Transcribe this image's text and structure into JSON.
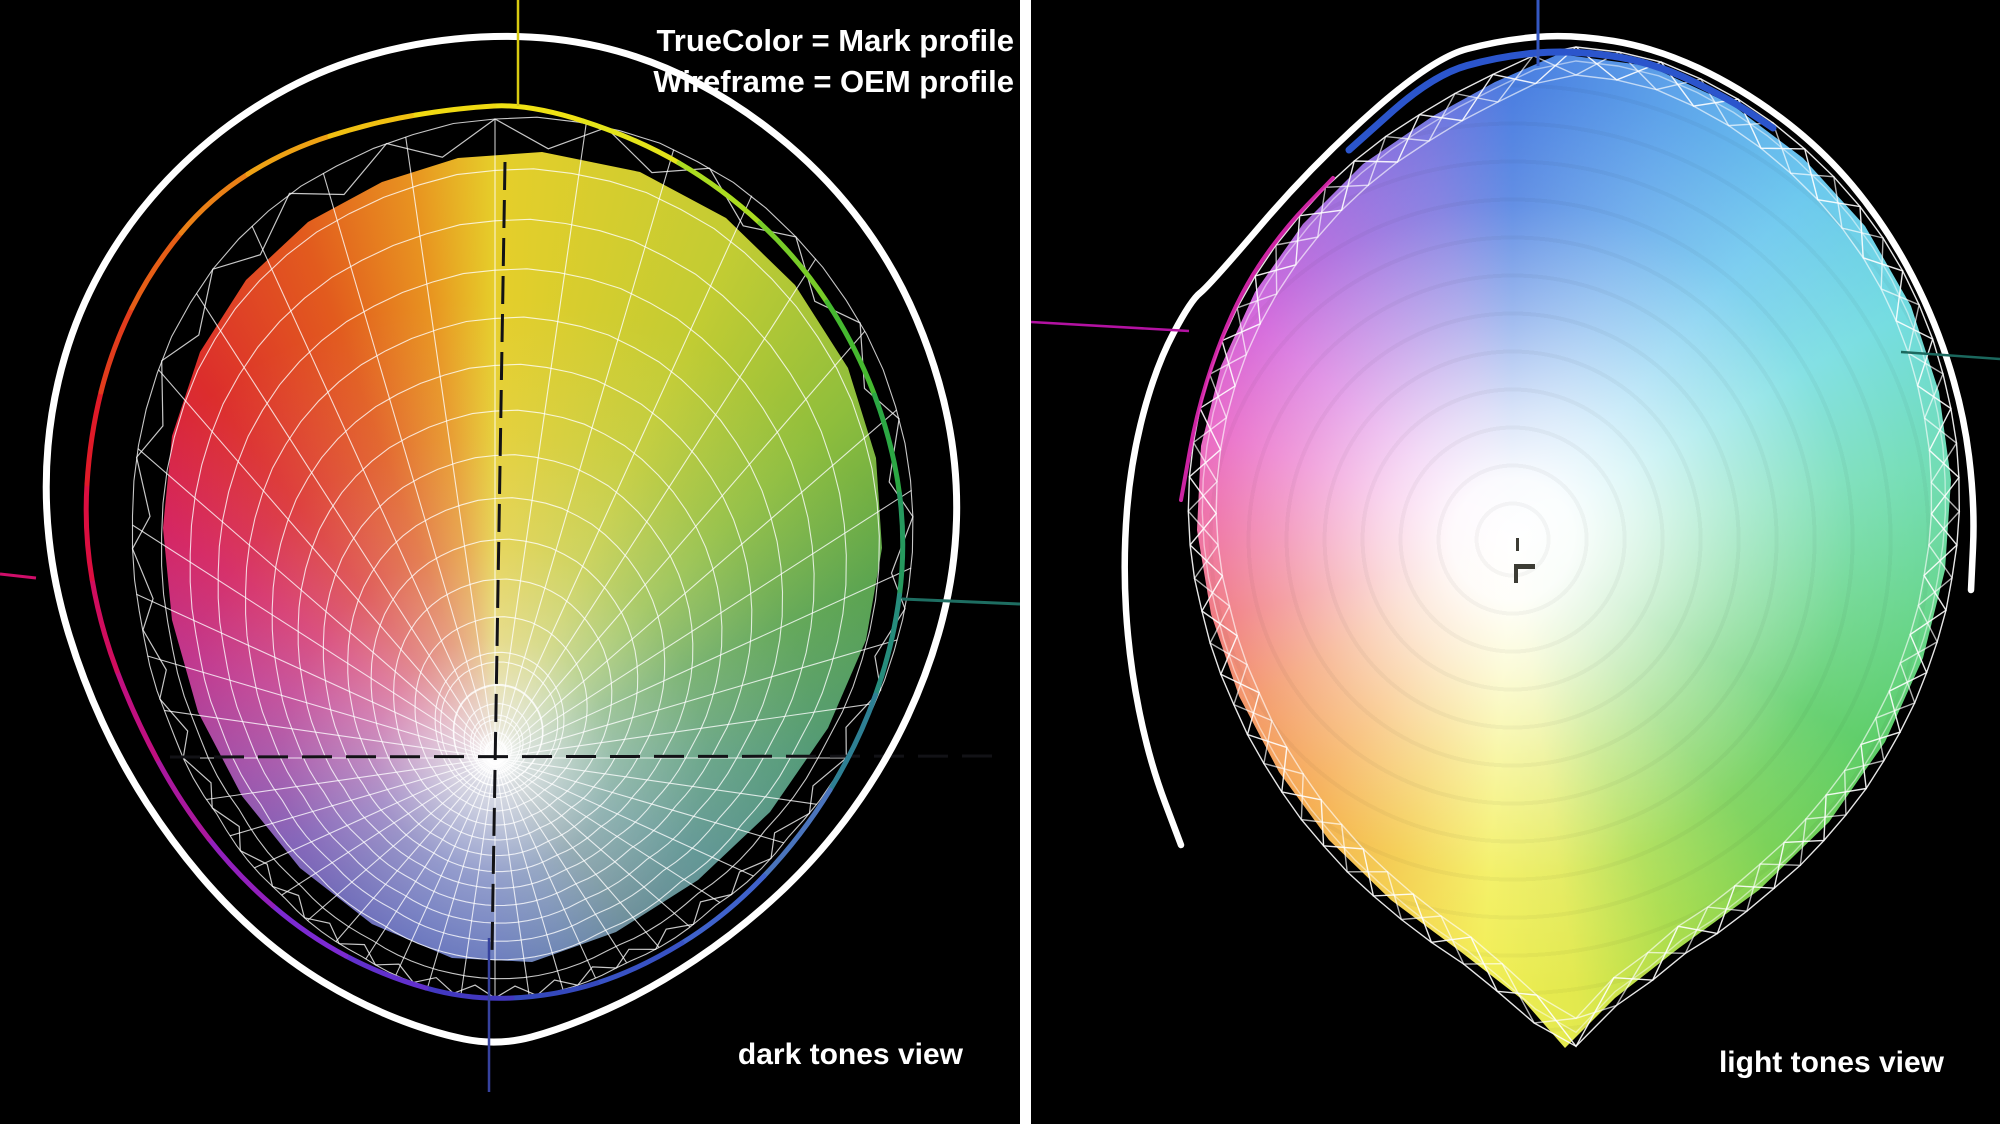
{
  "legend": {
    "line1": "TrueColor = Mark profile",
    "line2": "Wireframe = OEM profile"
  },
  "panels": [
    {
      "id": "dark-tones",
      "label": "dark tones view"
    },
    {
      "id": "light-tones",
      "label": "light tones view"
    }
  ],
  "colors": {
    "background": "#000000",
    "divider": "#ffffff",
    "text": "#ffffff",
    "truecolor_outline": "#ffffff",
    "wireframe": "#ffffff",
    "dark_view": {
      "axis_top_yellow": "#d8ca12",
      "axis_bottom_blue": "#36429e",
      "axis_left_magenta": "#d00e6a",
      "axis_right_teal": "#1e6e62",
      "axis_neutral_dashed": "#121216"
    },
    "light_view": {
      "axis_top_blue": "#3457c2",
      "axis_left_magenta": "#b312a2",
      "axis_right_teal": "#1b685e",
      "rim_blue": "#2b55cc",
      "rim_magenta": "#e228b4",
      "center_marker": "#3c3c34"
    }
  },
  "gamuts": {
    "dark_tones": {
      "description": "solid TrueColor gamut seen from below (black point center) with OEM wireframe mesh over it",
      "center_tone": "#eaeaea",
      "hue_ring": [
        {
          "a": 0,
          "c": "#e6ce2a"
        },
        {
          "a": 25,
          "c": "#c2cc33"
        },
        {
          "a": 45,
          "c": "#8fbe3c"
        },
        {
          "a": 65,
          "c": "#57a24a"
        },
        {
          "a": 90,
          "c": "#41906a"
        },
        {
          "a": 115,
          "c": "#3a7f7c"
        },
        {
          "a": 140,
          "c": "#42707f"
        },
        {
          "a": 160,
          "c": "#41639f"
        },
        {
          "a": 180,
          "c": "#3c54ae"
        },
        {
          "a": 205,
          "c": "#3a49ae"
        },
        {
          "a": 228,
          "c": "#4740a8"
        },
        {
          "a": 248,
          "c": "#653aa9"
        },
        {
          "a": 268,
          "c": "#93309b"
        },
        {
          "a": 288,
          "c": "#bc2383"
        },
        {
          "a": 305,
          "c": "#d41d5c"
        },
        {
          "a": 322,
          "c": "#dc2d2c"
        },
        {
          "a": 340,
          "c": "#e25b1e"
        },
        {
          "a": 352,
          "c": "#e89420"
        },
        {
          "a": 360,
          "c": "#e6ce2a"
        }
      ],
      "outline_hues": [
        "#f0e214",
        "#e4e41a",
        "#aadc20",
        "#78cc28",
        "#46b930",
        "#2ca844",
        "#26995e",
        "#268c7c",
        "#2e8094",
        "#4a74bc",
        "#3f62cc",
        "#3852c4",
        "#3448bc",
        "#4238c0",
        "#6130cc",
        "#7c2ad2",
        "#9220bc",
        "#aa189e",
        "#c01080",
        "#d00d5e",
        "#dc0e40",
        "#e01a28",
        "#e23c1c",
        "#e65e16",
        "#ea8016",
        "#eea214",
        "#f0c012",
        "#f0da12"
      ]
    },
    "light_tones": {
      "description": "solid TrueColor gamut seen from above (white point center) with OEM wireframe rim",
      "center_tone": "#ffffff",
      "hue_ring": [
        {
          "a": 0,
          "c": "#4a7de0"
        },
        {
          "a": 20,
          "c": "#5ea4ea"
        },
        {
          "a": 40,
          "c": "#6cc8ee"
        },
        {
          "a": 60,
          "c": "#72dce0"
        },
        {
          "a": 80,
          "c": "#6edcb4"
        },
        {
          "a": 100,
          "c": "#62d488"
        },
        {
          "a": 120,
          "c": "#55cb60"
        },
        {
          "a": 140,
          "c": "#72cf4e"
        },
        {
          "a": 158,
          "c": "#a8dc48"
        },
        {
          "a": 172,
          "c": "#e2e94e"
        },
        {
          "a": 184,
          "c": "#f2ee52"
        },
        {
          "a": 200,
          "c": "#f3c83e"
        },
        {
          "a": 218,
          "c": "#f4a038"
        },
        {
          "a": 238,
          "c": "#f07e42"
        },
        {
          "a": 255,
          "c": "#ec5a60"
        },
        {
          "a": 272,
          "c": "#ea4f8e"
        },
        {
          "a": 290,
          "c": "#e44cbc"
        },
        {
          "a": 310,
          "c": "#ce52d6"
        },
        {
          "a": 330,
          "c": "#a062dc"
        },
        {
          "a": 348,
          "c": "#7472de"
        },
        {
          "a": 360,
          "c": "#4a7de0"
        }
      ]
    }
  }
}
